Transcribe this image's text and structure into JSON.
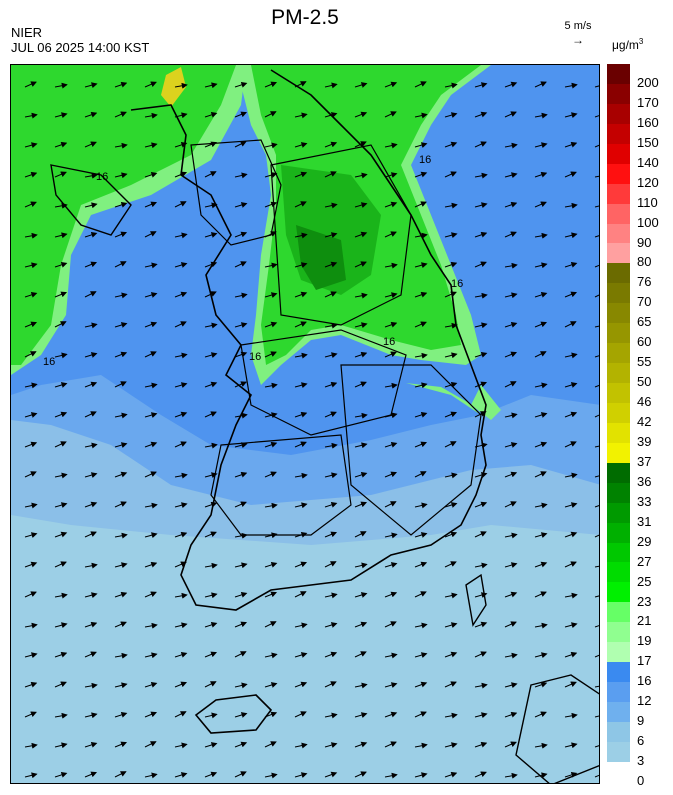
{
  "title": "PM-2.5",
  "header": {
    "org": "NIER",
    "timestamp": "JUL 06 2025 14:00 KST"
  },
  "wind_reference": {
    "label": "5 m/s",
    "arrow": "→"
  },
  "unit": {
    "base": "μg/m",
    "exp": "3"
  },
  "map_labels": [
    "16",
    "16",
    "16",
    "16",
    "16",
    "16"
  ],
  "legend": {
    "labels": [
      "200",
      "170",
      "160",
      "150",
      "140",
      "120",
      "110",
      "100",
      "90",
      "80",
      "76",
      "70",
      "65",
      "60",
      "55",
      "50",
      "46",
      "42",
      "39",
      "37",
      "36",
      "33",
      "31",
      "29",
      "27",
      "25",
      "23",
      "21",
      "19",
      "17",
      "16",
      "12",
      "9",
      "6",
      "3",
      "0"
    ],
    "colors": [
      "#6a0000",
      "#8a0000",
      "#a80000",
      "#c40000",
      "#e00000",
      "#ff1010",
      "#ff3a3a",
      "#ff6464",
      "#ff8282",
      "#ffa0a0",
      "#6b6b00",
      "#7a7a00",
      "#888800",
      "#969600",
      "#a5a500",
      "#b3b300",
      "#c2c200",
      "#d0d000",
      "#e2e200",
      "#f2f200",
      "#006c00",
      "#008200",
      "#009a00",
      "#00b000",
      "#00c800",
      "#00dc00",
      "#00f000",
      "#66ff66",
      "#90ff90",
      "#b0ffb0",
      "#3a8af0",
      "#5a9ef0",
      "#6fb0ee",
      "#8ec6e6",
      "#9ccfe6"
    ],
    "map_colors": {
      "level_0_5": "#9ccfe6",
      "level_6_8": "#8bbfe8",
      "level_9_11": "#6aa8ee",
      "level_12_15": "#4f94ef",
      "level_16_18": "#80f080",
      "level_19_22": "#2ed82e",
      "level_23_26": "#1ab41a",
      "level_27_30": "#0e8e0e",
      "level_37_38": "#dcd21e"
    }
  }
}
